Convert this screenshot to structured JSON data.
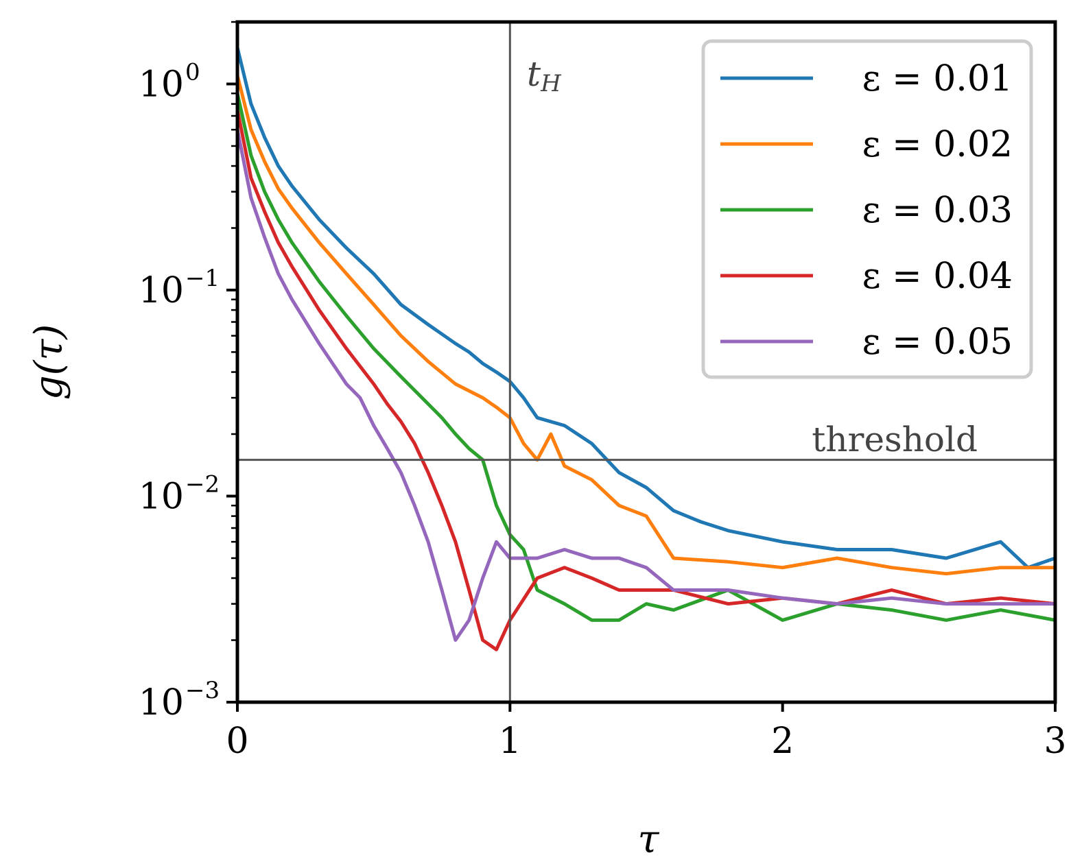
{
  "chart_data": {
    "type": "line",
    "xlabel": "τ",
    "ylabel": "g(τ)",
    "xlim": [
      0,
      3
    ],
    "ylim": [
      0.001,
      2.0
    ],
    "yscale": "log",
    "grid": false,
    "legend_position": "top-right",
    "x_ticks": [
      0,
      1,
      2,
      3
    ],
    "x_tick_labels": [
      "0",
      "1",
      "2",
      "3"
    ],
    "y_ticks": [
      1,
      0.1,
      0.01,
      0.001
    ],
    "y_tick_bases": [
      "10",
      "10",
      "10",
      "10"
    ],
    "y_tick_exponents": [
      "0",
      "−1",
      "−2",
      "−3"
    ],
    "vline": {
      "x": 1.0,
      "label_main": "t",
      "label_sub": "H",
      "color": "#555555"
    },
    "hline": {
      "y": 0.015,
      "label": "threshold",
      "color": "#555555"
    },
    "series": [
      {
        "name": "ε = 0.01",
        "color": "#1f77b4",
        "x": [
          0,
          0.05,
          0.1,
          0.15,
          0.2,
          0.3,
          0.4,
          0.5,
          0.6,
          0.7,
          0.8,
          0.85,
          0.9,
          0.95,
          1.0,
          1.05,
          1.1,
          1.2,
          1.3,
          1.4,
          1.5,
          1.6,
          1.7,
          1.8,
          2.0,
          2.2,
          2.4,
          2.6,
          2.8,
          2.9,
          3.0
        ],
        "y": [
          1.5,
          0.8,
          0.55,
          0.4,
          0.32,
          0.22,
          0.16,
          0.12,
          0.085,
          0.068,
          0.055,
          0.05,
          0.044,
          0.04,
          0.036,
          0.03,
          0.024,
          0.022,
          0.018,
          0.013,
          0.011,
          0.0085,
          0.0075,
          0.0068,
          0.006,
          0.0055,
          0.0055,
          0.005,
          0.006,
          0.0045,
          0.005
        ]
      },
      {
        "name": "ε = 0.02",
        "color": "#ff7f0e",
        "x": [
          0,
          0.05,
          0.1,
          0.15,
          0.2,
          0.3,
          0.4,
          0.5,
          0.6,
          0.7,
          0.8,
          0.9,
          0.95,
          1.0,
          1.05,
          1.1,
          1.15,
          1.2,
          1.3,
          1.4,
          1.5,
          1.6,
          1.8,
          2.0,
          2.2,
          2.4,
          2.6,
          2.8,
          3.0
        ],
        "y": [
          1.1,
          0.6,
          0.42,
          0.31,
          0.25,
          0.17,
          0.12,
          0.085,
          0.06,
          0.045,
          0.035,
          0.03,
          0.027,
          0.024,
          0.018,
          0.015,
          0.02,
          0.014,
          0.012,
          0.009,
          0.008,
          0.005,
          0.0048,
          0.0045,
          0.005,
          0.0045,
          0.0042,
          0.0045,
          0.0045
        ]
      },
      {
        "name": "ε = 0.03",
        "color": "#2ca02c",
        "x": [
          0,
          0.05,
          0.1,
          0.15,
          0.2,
          0.3,
          0.4,
          0.5,
          0.6,
          0.7,
          0.75,
          0.8,
          0.85,
          0.9,
          0.95,
          1.0,
          1.05,
          1.1,
          1.2,
          1.3,
          1.4,
          1.5,
          1.6,
          1.8,
          2.0,
          2.2,
          2.4,
          2.6,
          2.8,
          3.0
        ],
        "y": [
          0.9,
          0.45,
          0.3,
          0.22,
          0.17,
          0.11,
          0.075,
          0.052,
          0.038,
          0.028,
          0.024,
          0.02,
          0.017,
          0.015,
          0.009,
          0.0065,
          0.0055,
          0.0035,
          0.003,
          0.0025,
          0.0025,
          0.003,
          0.0028,
          0.0035,
          0.0025,
          0.003,
          0.0028,
          0.0025,
          0.0028,
          0.0025
        ]
      },
      {
        "name": "ε = 0.04",
        "color": "#d62728",
        "x": [
          0,
          0.05,
          0.1,
          0.15,
          0.2,
          0.3,
          0.4,
          0.5,
          0.55,
          0.6,
          0.65,
          0.7,
          0.75,
          0.8,
          0.85,
          0.9,
          0.95,
          1.0,
          1.1,
          1.2,
          1.3,
          1.4,
          1.6,
          1.8,
          2.0,
          2.2,
          2.4,
          2.6,
          2.8,
          3.0
        ],
        "y": [
          0.75,
          0.35,
          0.24,
          0.17,
          0.13,
          0.08,
          0.052,
          0.035,
          0.028,
          0.023,
          0.018,
          0.013,
          0.009,
          0.006,
          0.0035,
          0.002,
          0.0018,
          0.0025,
          0.004,
          0.0045,
          0.004,
          0.0035,
          0.0035,
          0.003,
          0.0032,
          0.003,
          0.0035,
          0.003,
          0.0032,
          0.003
        ]
      },
      {
        "name": "ε = 0.05",
        "color": "#9467bd",
        "x": [
          0,
          0.05,
          0.1,
          0.15,
          0.2,
          0.3,
          0.4,
          0.45,
          0.5,
          0.55,
          0.6,
          0.65,
          0.7,
          0.75,
          0.8,
          0.85,
          0.9,
          0.95,
          1.0,
          1.1,
          1.2,
          1.3,
          1.4,
          1.5,
          1.6,
          1.8,
          2.0,
          2.2,
          2.4,
          2.6,
          2.8,
          3.0
        ],
        "y": [
          0.6,
          0.28,
          0.18,
          0.12,
          0.09,
          0.055,
          0.035,
          0.03,
          0.022,
          0.017,
          0.013,
          0.009,
          0.006,
          0.0035,
          0.002,
          0.0025,
          0.004,
          0.006,
          0.005,
          0.005,
          0.0055,
          0.005,
          0.005,
          0.0045,
          0.0035,
          0.0035,
          0.0032,
          0.003,
          0.0032,
          0.003,
          0.003,
          0.003
        ]
      }
    ]
  }
}
